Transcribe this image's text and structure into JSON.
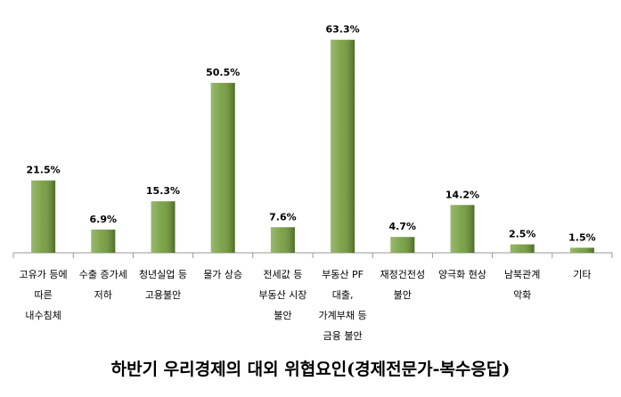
{
  "chart_data": {
    "type": "bar",
    "title": "하반기 우리경제의 대외 위협요인(경제전문가-복수응답)",
    "categories": [
      "고유가 등에\n따른\n내수침체",
      "수출 증가세\n저하",
      "청년실업 등\n고용불안",
      "물가 상승",
      "전세값 등\n부동산 시장\n불안",
      "부동산 PF\n대출,\n가계부채 등\n금융 불안",
      "재정건전성\n불안",
      "양극화 현상",
      "남북관계\n악화",
      "기타"
    ],
    "values": [
      21.5,
      6.9,
      15.3,
      50.5,
      7.6,
      63.3,
      4.7,
      14.2,
      2.5,
      1.5
    ],
    "value_labels": [
      "21.5%",
      "6.9%",
      "15.3%",
      "50.5%",
      "7.6%",
      "63.3%",
      "4.7%",
      "14.2%",
      "2.5%",
      "1.5%"
    ],
    "color": "#6f9a35"
  }
}
